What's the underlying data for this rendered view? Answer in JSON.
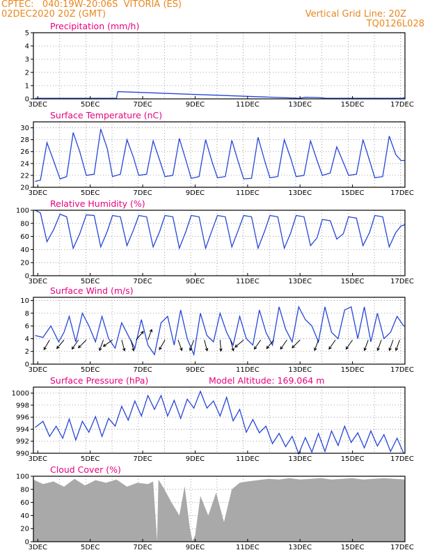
{
  "header": {
    "line1_left": "CPTEC:   040:19W-20:06S  VITORIA (ES)",
    "line2_left": "02DEC2020 20Z (GMT)",
    "line1_right": "Vertical Grid Line: 20Z",
    "line2_right": "TQ0126L028",
    "color": "#e8871e"
  },
  "colors": {
    "series": "#2545d8",
    "title": "#e6007e",
    "cloud": "#a9a9a9",
    "grid": "#888888"
  },
  "x_axis": {
    "start_day": 2.833,
    "end_day": 17.0,
    "tick_days": [
      3,
      5,
      7,
      9,
      11,
      13,
      15,
      17
    ],
    "tick_labels": [
      "3DEC",
      "5DEC",
      "7DEC",
      "9DEC",
      "11DEC",
      "13DEC",
      "15DEC",
      "17DEC"
    ],
    "gridlines": "vertical dotted at 20Z each day"
  },
  "chart_data": [
    {
      "type": "line",
      "title": "Precipitation (mm/h)",
      "ylim": [
        0,
        5
      ],
      "yticks": [
        0,
        1,
        2,
        3,
        4,
        5
      ],
      "x": [
        2.9,
        6.0,
        6.05,
        13.0,
        13.2,
        13.7,
        14.0,
        16.9,
        17.0
      ],
      "y": [
        0.05,
        0.05,
        0.55,
        0.05,
        0.12,
        0.1,
        0.05,
        0.05,
        0.1
      ]
    },
    {
      "type": "line",
      "title": "Surface Temperature (nC)",
      "ylim": [
        20,
        31
      ],
      "yticks": [
        20,
        22,
        24,
        26,
        28,
        30
      ],
      "x": [
        2.9,
        3.1,
        3.35,
        3.6,
        3.85,
        4.1,
        4.35,
        4.6,
        4.85,
        5.15,
        5.4,
        5.65,
        5.85,
        6.15,
        6.4,
        6.65,
        6.85,
        7.15,
        7.4,
        7.65,
        7.85,
        8.15,
        8.4,
        8.65,
        8.85,
        9.15,
        9.4,
        9.65,
        9.85,
        10.15,
        10.4,
        10.65,
        10.85,
        11.15,
        11.4,
        11.65,
        11.85,
        12.15,
        12.4,
        12.65,
        12.85,
        13.15,
        13.4,
        13.65,
        13.85,
        14.15,
        14.4,
        14.65,
        14.85,
        15.15,
        15.4,
        15.65,
        15.85,
        16.15,
        16.4,
        16.65,
        16.85,
        17.0
      ],
      "y": [
        21,
        21.2,
        27.5,
        24.5,
        21.4,
        21.8,
        29.2,
        26,
        22,
        22.2,
        29.8,
        26.5,
        21.8,
        22.2,
        28,
        25,
        22,
        22.2,
        27.8,
        24.5,
        21.8,
        22,
        28.2,
        24.5,
        21.5,
        21.8,
        28,
        24.2,
        21.6,
        21.8,
        27.9,
        24.2,
        21.4,
        21.5,
        28.4,
        24.5,
        21.6,
        21.8,
        28,
        24.8,
        21.8,
        22,
        27.8,
        24.5,
        22,
        22.4,
        26.8,
        24.2,
        22,
        22.2,
        28,
        24.5,
        21.6,
        21.8,
        28.6,
        25.5,
        24.5,
        24.5
      ]
    },
    {
      "type": "line",
      "title": "Relative Humidity (%)",
      "ylim": [
        0,
        100
      ],
      "yticks": [
        0,
        20,
        40,
        60,
        80,
        100
      ],
      "x": [
        2.9,
        3.1,
        3.35,
        3.6,
        3.85,
        4.1,
        4.35,
        4.6,
        4.85,
        5.15,
        5.4,
        5.65,
        5.85,
        6.15,
        6.4,
        6.65,
        6.85,
        7.15,
        7.4,
        7.65,
        7.85,
        8.15,
        8.4,
        8.65,
        8.85,
        9.15,
        9.4,
        9.65,
        9.85,
        10.15,
        10.4,
        10.65,
        10.85,
        11.15,
        11.4,
        11.65,
        11.85,
        12.15,
        12.4,
        12.65,
        12.85,
        13.15,
        13.4,
        13.65,
        13.85,
        14.15,
        14.4,
        14.65,
        14.85,
        15.15,
        15.4,
        15.65,
        15.85,
        16.15,
        16.4,
        16.65,
        16.85,
        17.0
      ],
      "y": [
        100,
        96,
        52,
        70,
        94,
        90,
        42,
        64,
        93,
        92,
        44,
        68,
        92,
        90,
        46,
        70,
        92,
        90,
        44,
        68,
        92,
        90,
        42,
        68,
        92,
        90,
        42,
        70,
        92,
        90,
        44,
        70,
        92,
        90,
        42,
        68,
        92,
        90,
        42,
        66,
        92,
        90,
        46,
        58,
        86,
        84,
        56,
        64,
        90,
        88,
        46,
        66,
        92,
        90,
        44,
        66,
        76,
        78
      ]
    },
    {
      "type": "line",
      "title": "Surface Wind (m/s)",
      "ylim": [
        0,
        10.5
      ],
      "yticks": [
        0,
        2,
        4,
        6,
        8,
        10
      ],
      "x": [
        2.9,
        3.2,
        3.5,
        3.8,
        4.0,
        4.2,
        4.45,
        4.7,
        4.95,
        5.2,
        5.45,
        5.7,
        5.95,
        6.2,
        6.45,
        6.7,
        6.95,
        7.2,
        7.45,
        7.7,
        7.95,
        8.2,
        8.45,
        8.7,
        8.95,
        9.2,
        9.45,
        9.7,
        9.95,
        10.2,
        10.45,
        10.7,
        10.95,
        11.2,
        11.45,
        11.7,
        11.95,
        12.2,
        12.45,
        12.7,
        12.95,
        13.2,
        13.45,
        13.7,
        13.95,
        14.2,
        14.45,
        14.7,
        14.95,
        15.2,
        15.45,
        15.7,
        15.95,
        16.2,
        16.45,
        16.7,
        16.95,
        17.0
      ],
      "y": [
        4.5,
        4.2,
        6,
        3.5,
        5,
        7.5,
        3.5,
        8,
        6,
        3.5,
        7.5,
        4,
        2.5,
        6.5,
        4.5,
        2.5,
        7,
        3,
        1.5,
        6.5,
        7.5,
        3,
        8.5,
        4,
        1.5,
        8,
        4.5,
        3.5,
        8,
        5,
        3,
        7.5,
        4,
        3,
        8.5,
        5,
        3,
        9,
        5.5,
        3.5,
        9,
        7,
        6,
        3.5,
        9,
        5,
        4,
        8.5,
        9,
        4,
        9,
        3.5,
        8,
        4,
        5,
        7.5,
        6,
        6
      ],
      "arrows": [
        {
          "x": 3.45,
          "dir_deg": 210
        },
        {
          "x": 4.0,
          "dir_deg": 220
        },
        {
          "x": 4.55,
          "dir_deg": 215
        },
        {
          "x": 4.85,
          "dir_deg": 225
        },
        {
          "x": 5.5,
          "dir_deg": 200
        },
        {
          "x": 5.85,
          "dir_deg": 235
        },
        {
          "x": 6.2,
          "dir_deg": 165
        },
        {
          "x": 6.55,
          "dir_deg": 165
        },
        {
          "x": 6.75,
          "dir_deg": 40
        },
        {
          "x": 7.2,
          "dir_deg": 20
        },
        {
          "x": 7.85,
          "dir_deg": 210
        },
        {
          "x": 8.35,
          "dir_deg": 160
        },
        {
          "x": 8.95,
          "dir_deg": 200
        },
        {
          "x": 9.35,
          "dir_deg": 165
        },
        {
          "x": 9.95,
          "dir_deg": 175
        },
        {
          "x": 10.35,
          "dir_deg": 165
        },
        {
          "x": 10.85,
          "dir_deg": 230
        },
        {
          "x": 11.5,
          "dir_deg": 215
        },
        {
          "x": 12.0,
          "dir_deg": 220
        },
        {
          "x": 12.5,
          "dir_deg": 215
        },
        {
          "x": 13.0,
          "dir_deg": 225
        },
        {
          "x": 13.7,
          "dir_deg": 200
        },
        {
          "x": 14.35,
          "dir_deg": 215
        },
        {
          "x": 15.0,
          "dir_deg": 215
        },
        {
          "x": 15.6,
          "dir_deg": 200
        },
        {
          "x": 16.1,
          "dir_deg": 200
        },
        {
          "x": 16.55,
          "dir_deg": 200
        },
        {
          "x": 16.8,
          "dir_deg": 200
        }
      ]
    },
    {
      "type": "line",
      "title": "Surface Pressure (hPa)",
      "annotation": "Model Altitude: 169.064 m",
      "ylim": [
        990,
        1001
      ],
      "yticks": [
        990,
        992,
        994,
        996,
        998,
        1000
      ],
      "x": [
        2.9,
        3.2,
        3.45,
        3.7,
        3.95,
        4.2,
        4.45,
        4.7,
        4.95,
        5.2,
        5.45,
        5.7,
        5.95,
        6.2,
        6.45,
        6.7,
        6.95,
        7.2,
        7.45,
        7.7,
        7.95,
        8.2,
        8.45,
        8.7,
        8.95,
        9.2,
        9.45,
        9.7,
        9.95,
        10.2,
        10.45,
        10.7,
        10.95,
        11.2,
        11.45,
        11.7,
        11.95,
        12.2,
        12.45,
        12.7,
        12.95,
        13.2,
        13.45,
        13.7,
        13.95,
        14.2,
        14.45,
        14.7,
        14.95,
        15.2,
        15.45,
        15.7,
        15.95,
        16.2,
        16.45,
        16.7,
        16.95,
        17.0
      ],
      "y": [
        994.3,
        995.3,
        992.8,
        994.5,
        992.5,
        995.7,
        992.2,
        995.3,
        993.5,
        996.1,
        992.8,
        995.8,
        994.5,
        997.8,
        995.5,
        998.7,
        996.2,
        999.6,
        997.3,
        999.6,
        996.2,
        998.8,
        995.8,
        999.0,
        997.5,
        1000.3,
        997.5,
        998.7,
        996.2,
        999.3,
        995.4,
        997.3,
        993.5,
        995.6,
        993.4,
        994.5,
        991.6,
        993.3,
        991.1,
        992.8,
        989.9,
        992.6,
        990.2,
        993.3,
        990.3,
        993.7,
        991.3,
        994.5,
        991.8,
        993.4,
        990.9,
        993.7,
        991.2,
        993.1,
        990.3,
        992.5,
        990.0,
        990.0
      ]
    },
    {
      "type": "area",
      "title": "Cloud Cover (%)",
      "ylim": [
        0,
        100
      ],
      "yticks": [
        0,
        20,
        40,
        60,
        80,
        100
      ],
      "x": [
        2.83,
        3.2,
        3.6,
        4.0,
        4.4,
        4.8,
        5.2,
        5.6,
        6.0,
        6.4,
        6.8,
        7.2,
        7.4,
        7.55,
        7.6,
        7.8,
        8.1,
        8.4,
        8.6,
        8.8,
        8.9,
        9.0,
        9.2,
        9.5,
        9.8,
        10.1,
        10.4,
        10.7,
        11.0,
        11.4,
        11.8,
        12.2,
        12.6,
        13.0,
        13.4,
        13.8,
        14.2,
        14.6,
        15.0,
        15.4,
        15.8,
        16.2,
        16.6,
        17.0
      ],
      "y": [
        95,
        88,
        92,
        84,
        96,
        86,
        94,
        90,
        95,
        84,
        90,
        88,
        92,
        1,
        95,
        82,
        60,
        40,
        85,
        20,
        1,
        10,
        70,
        40,
        75,
        30,
        80,
        90,
        92,
        94,
        96,
        95,
        97,
        95,
        96,
        97,
        95,
        96,
        97,
        95,
        96,
        97,
        96,
        95
      ]
    }
  ]
}
